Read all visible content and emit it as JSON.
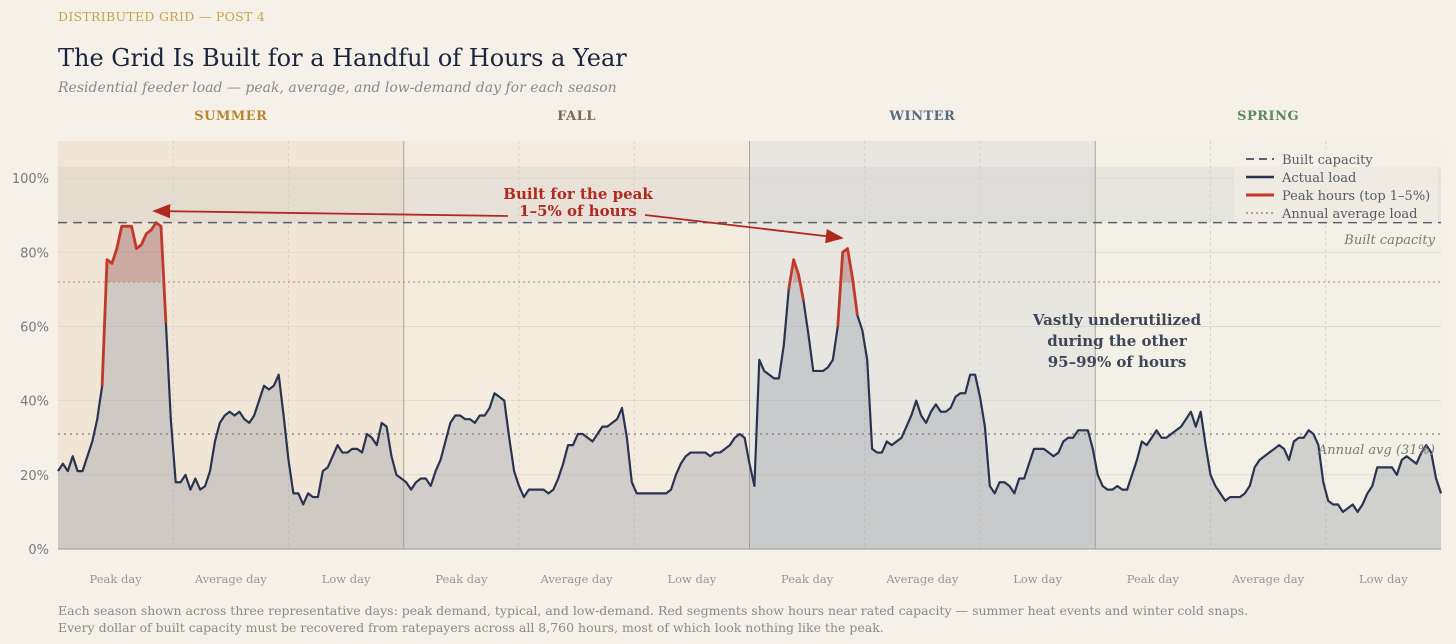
{
  "header": {
    "kicker": "DISTRIBUTED GRID — POST 4",
    "title": "The Grid Is Built for a Handful of Hours a Year",
    "subtitle": "Residential feeder load — peak, average, and low-demand day for each season"
  },
  "footnote": {
    "line1": "Each season shown across three representative days: peak demand, typical, and low-demand. Red segments show hours near rated capacity — summer heat events and winter cold snaps.",
    "line2": "Every dollar of built capacity must be recovered from ratepayers across all 8,760 hours, most of which look nothing like the peak."
  },
  "chart_data": {
    "type": "line",
    "title": "The Grid Is Built for a Handful of Hours a Year",
    "subtitle": "Residential feeder load — peak, average, and low-demand day for each season",
    "x_unit": "hour",
    "ylim": [
      0,
      110
    ],
    "yticks": [
      0,
      20,
      40,
      60,
      80,
      100
    ],
    "ytick_labels": [
      "0%",
      "20%",
      "40%",
      "60%",
      "80%",
      "100%"
    ],
    "grid": true,
    "legend_position": "top-right",
    "seasons": [
      {
        "name": "SUMMER",
        "color": "#b8862e",
        "band": "#f1e5d6"
      },
      {
        "name": "FALL",
        "color": "#7a6a4a",
        "band": "#f5ece0"
      },
      {
        "name": "WINTER",
        "color": "#5a6a80",
        "band": "#e8e6e0"
      },
      {
        "name": "SPRING",
        "color": "#5a8a5a",
        "band": "#f3f0e6"
      }
    ],
    "day_labels": [
      "Peak day",
      "Average day",
      "Low day",
      "Peak day",
      "Average day",
      "Low day",
      "Peak day",
      "Average day",
      "Low day",
      "Peak day",
      "Average day",
      "Low day"
    ],
    "hours_per_day": 24,
    "reference_lines": {
      "built_capacity": 88,
      "annual_average": 31,
      "peak_threshold": 72
    },
    "legend": [
      {
        "label": "Built capacity",
        "style": "dashed",
        "color": "#5a6070"
      },
      {
        "label": "Actual load",
        "style": "solid",
        "color": "#2a3450"
      },
      {
        "label": "Peak hours (top 1–5%)",
        "style": "solid",
        "color": "#c0392b"
      },
      {
        "label": "Annual average load",
        "style": "dotted",
        "color": "#8a7a7a"
      }
    ],
    "annotations": {
      "peak_line1": "Built for the peak",
      "peak_line2": "1–5% of hours",
      "under_line1": "Vastly underutilized",
      "under_line2": "during the other",
      "under_line3": "95–99% of hours",
      "capacity_label": "Built capacity",
      "average_label": "Annual avg  (31%)"
    },
    "series": [
      {
        "name": "Actual load",
        "values": [
          21,
          23,
          21,
          25,
          21,
          21,
          25,
          29,
          35,
          44,
          78,
          77,
          81,
          87,
          87,
          87,
          81,
          82,
          85,
          86,
          88,
          87,
          61,
          35,
          18,
          18,
          20,
          16,
          19,
          16,
          17,
          21,
          29,
          34,
          36,
          37,
          36,
          37,
          35,
          34,
          36,
          40,
          44,
          43,
          44,
          47,
          36,
          24,
          15,
          15,
          12,
          15,
          14,
          14,
          21,
          22,
          25,
          28,
          26,
          26,
          27,
          27,
          26,
          31,
          30,
          28,
          34,
          33,
          25,
          20,
          19,
          18,
          16,
          18,
          19,
          19,
          17,
          21,
          24,
          29,
          34,
          36,
          36,
          35,
          35,
          34,
          36,
          36,
          38,
          42,
          41,
          40,
          30,
          21,
          17,
          14,
          16,
          16,
          16,
          16,
          15,
          16,
          19,
          23,
          28,
          28,
          31,
          31,
          30,
          29,
          31,
          33,
          33,
          34,
          35,
          38,
          30,
          18,
          15,
          15,
          15,
          15,
          15,
          15,
          15,
          16,
          20,
          23,
          25,
          26,
          26,
          26,
          26,
          25,
          26,
          26,
          27,
          28,
          30,
          31,
          30,
          23,
          17,
          51,
          48,
          47,
          46,
          46,
          55,
          70,
          78,
          74,
          67,
          58,
          48,
          48,
          48,
          49,
          51,
          60,
          80,
          81,
          73,
          63,
          59,
          51,
          27,
          26,
          26,
          29,
          28,
          29,
          30,
          33,
          36,
          40,
          36,
          34,
          37,
          39,
          37,
          37,
          38,
          41,
          42,
          42,
          47,
          47,
          41,
          33,
          17,
          15,
          18,
          18,
          17,
          15,
          19,
          19,
          23,
          27,
          27,
          27,
          26,
          25,
          26,
          29,
          30,
          30,
          32,
          32,
          32,
          27,
          20,
          17,
          16,
          16,
          17,
          16,
          16,
          20,
          24,
          29,
          28,
          30,
          32,
          30,
          30,
          31,
          32,
          33,
          35,
          37,
          33,
          37,
          28,
          20,
          17,
          15,
          13,
          14,
          14,
          14,
          15,
          17,
          22,
          24,
          25,
          26,
          27,
          28,
          27,
          24,
          29,
          30,
          30,
          32,
          31,
          28,
          18,
          13,
          12,
          12,
          10,
          11,
          12,
          10,
          12,
          15,
          17,
          22,
          22,
          22,
          22,
          20,
          24,
          25,
          24,
          23,
          26,
          28,
          26,
          19,
          15
        ]
      }
    ]
  }
}
